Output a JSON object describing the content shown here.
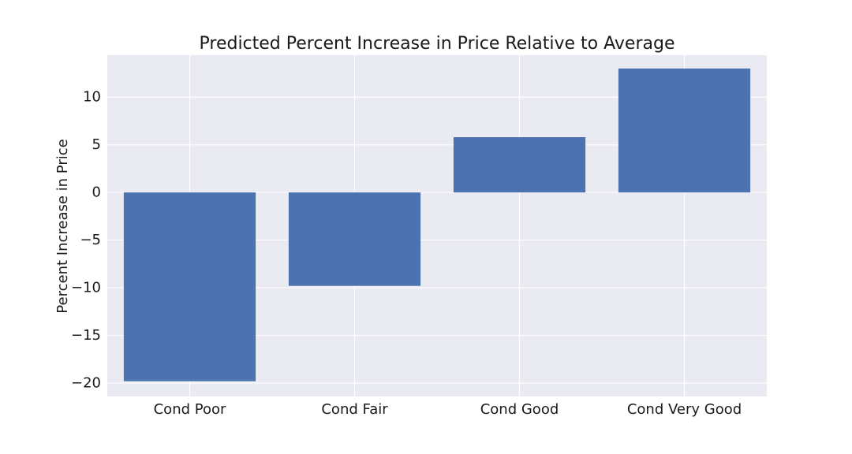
{
  "chart_data": {
    "type": "bar",
    "title": "Predicted Percent Increase in Price Relative to Average",
    "xlabel": "",
    "ylabel": "Percent Increase in Price",
    "categories": [
      "Cond Poor",
      "Cond Fair",
      "Cond Good",
      "Cond Very Good"
    ],
    "values": [
      -19.8,
      -9.8,
      5.8,
      13.0
    ],
    "ylim": [
      -21.4,
      14.4
    ],
    "yticks": [
      10,
      5,
      0,
      -5,
      -10,
      -15,
      -20
    ],
    "ytick_labels": [
      "10",
      "5",
      "0",
      "−5",
      "−10",
      "−15",
      "−20"
    ],
    "grid": true,
    "colors": {
      "bar": "#4c72b0",
      "plot_background": "#eaeaf2",
      "grid": "#ffffff"
    }
  }
}
